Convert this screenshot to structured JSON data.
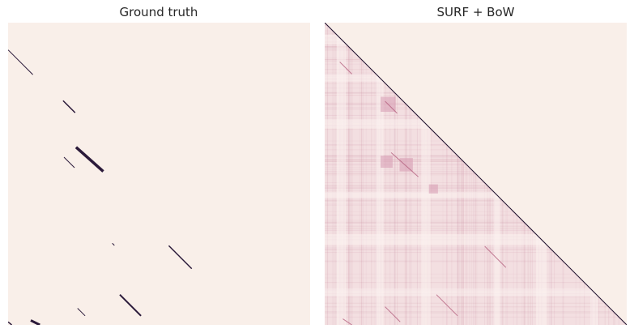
{
  "chart_data": [
    {
      "type": "heatmap",
      "title": "Ground truth",
      "description_matrix": "similarity matrix, sparse diagonal loop-closure segments",
      "xlim": [
        0,
        1
      ],
      "ylim": [
        0,
        1
      ],
      "axes_visible": false,
      "grid": false,
      "colors": {
        "background": "#f9efe9",
        "mark": "#2b1a3a"
      },
      "segments": [
        {
          "x1": 0.0,
          "y1": 0.09,
          "x2": 0.082,
          "y2": 0.172,
          "weight": 1
        },
        {
          "x1": 0.182,
          "y1": 0.258,
          "x2": 0.222,
          "y2": 0.298,
          "weight": 1.5
        },
        {
          "x1": 0.185,
          "y1": 0.445,
          "x2": 0.22,
          "y2": 0.48,
          "weight": 1
        },
        {
          "x1": 0.225,
          "y1": 0.412,
          "x2": 0.315,
          "y2": 0.492,
          "weight": 3.5
        },
        {
          "x1": 0.345,
          "y1": 0.73,
          "x2": 0.352,
          "y2": 0.737,
          "weight": 1
        },
        {
          "x1": 0.532,
          "y1": 0.738,
          "x2": 0.608,
          "y2": 0.814,
          "weight": 1.5
        },
        {
          "x1": 0.37,
          "y1": 0.9,
          "x2": 0.44,
          "y2": 0.97,
          "weight": 2
        },
        {
          "x1": 0.23,
          "y1": 0.945,
          "x2": 0.255,
          "y2": 0.97,
          "weight": 1
        },
        {
          "x1": 0.075,
          "y1": 0.985,
          "x2": 0.105,
          "y2": 1.0,
          "weight": 3
        },
        {
          "x1": 0.0,
          "y1": 0.99,
          "x2": 0.012,
          "y2": 1.0,
          "weight": 1.5
        }
      ]
    },
    {
      "type": "heatmap",
      "title": "SURF + BoW",
      "xlim": [
        0,
        1
      ],
      "ylim": [
        0,
        1
      ],
      "axes_visible": false,
      "grid": false,
      "colors": {
        "background": "#f9efe9",
        "mark": "#1b0c2a",
        "accent": "#d9a0b5"
      },
      "diagonal": {
        "x1": 0,
        "y1": 0,
        "x2": 1,
        "y2": 1
      },
      "lower_triangle_bands": [
        {
          "pos": 0.04,
          "width": 0.03
        },
        {
          "pos": 0.17,
          "width": 0.025
        },
        {
          "pos": 0.32,
          "width": 0.03
        },
        {
          "pos": 0.56,
          "width": 0.02
        },
        {
          "pos": 0.7,
          "width": 0.035
        },
        {
          "pos": 0.88,
          "width": 0.025
        }
      ],
      "hot_spots": [
        {
          "x": 0.21,
          "y": 0.27,
          "r": 0.025
        },
        {
          "x": 0.205,
          "y": 0.46,
          "r": 0.02
        },
        {
          "x": 0.27,
          "y": 0.47,
          "r": 0.022
        },
        {
          "x": 0.36,
          "y": 0.55,
          "r": 0.015
        }
      ],
      "segments": [
        {
          "x1": 0.05,
          "y1": 0.13,
          "x2": 0.09,
          "y2": 0.17
        },
        {
          "x1": 0.2,
          "y1": 0.26,
          "x2": 0.24,
          "y2": 0.3
        },
        {
          "x1": 0.22,
          "y1": 0.43,
          "x2": 0.31,
          "y2": 0.51
        },
        {
          "x1": 0.53,
          "y1": 0.74,
          "x2": 0.6,
          "y2": 0.81
        },
        {
          "x1": 0.37,
          "y1": 0.9,
          "x2": 0.44,
          "y2": 0.97
        },
        {
          "x1": 0.2,
          "y1": 0.94,
          "x2": 0.25,
          "y2": 0.99
        },
        {
          "x1": 0.06,
          "y1": 0.98,
          "x2": 0.09,
          "y2": 1.0
        }
      ]
    }
  ]
}
